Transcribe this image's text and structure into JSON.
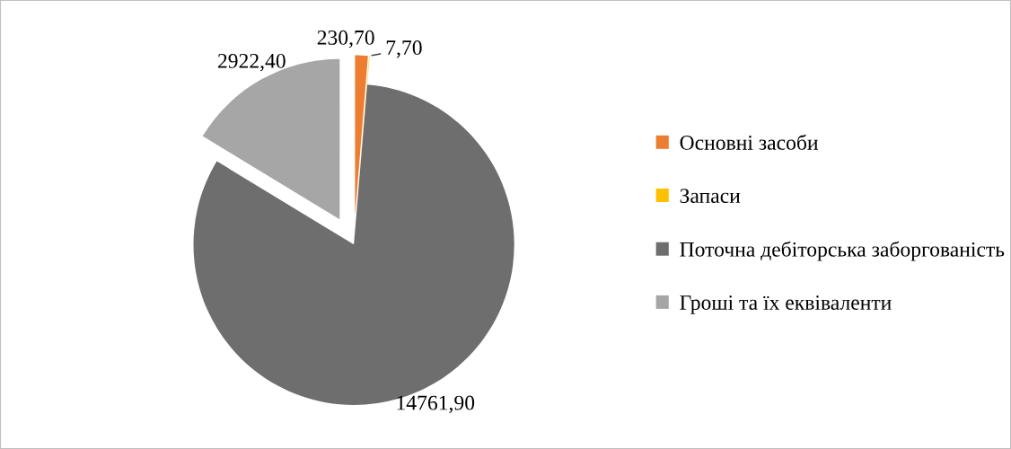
{
  "chart_data": {
    "type": "pie",
    "categories": [
      "Основні засоби",
      "Запаси",
      "Поточна дебіторська заборгованість",
      "Гроші та їх еквіваленти"
    ],
    "values": [
      230.7,
      7.7,
      14761.9,
      2922.4
    ],
    "value_labels": [
      "230,70",
      "7,70",
      "14761,90",
      "2922,40"
    ],
    "colors": [
      "#ed7d31",
      "#ffc000",
      "#6e6e6e",
      "#a6a6a6"
    ],
    "legend": "right"
  }
}
